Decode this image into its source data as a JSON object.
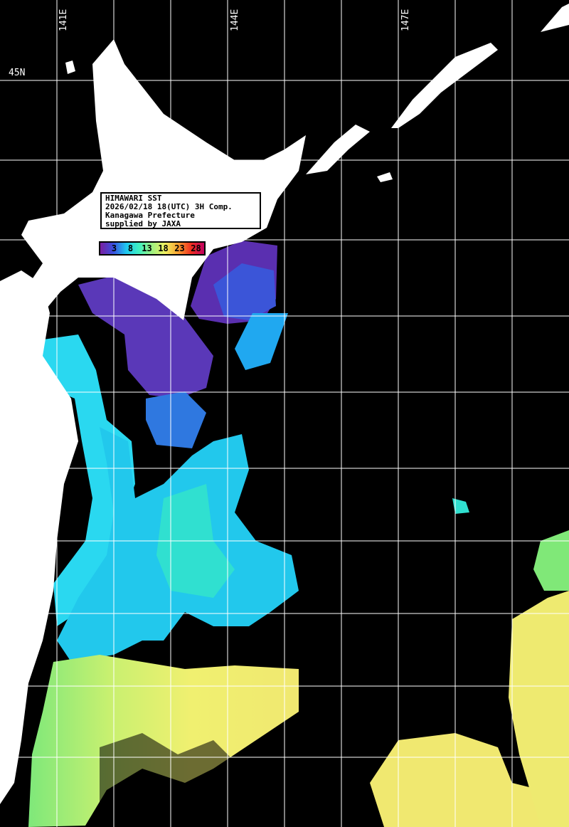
{
  "info_box": {
    "line1": "HIMAWARI SST",
    "line2": "2026/02/18 18(UTC) 3H Comp.",
    "line3": "Kanagawa Prefecture",
    "line4": "supplied by JAXA"
  },
  "colorbar": {
    "ticks": [
      "3",
      "8",
      "13",
      "18",
      "23",
      "28"
    ],
    "colors": [
      "#7a1fa0",
      "#3a4fe0",
      "#1ec8f0",
      "#40f0c0",
      "#a0f080",
      "#f0f060",
      "#f8a030",
      "#f03020",
      "#c00060"
    ]
  },
  "axes": {
    "lon_labels": [
      "141E",
      "144E",
      "147E"
    ],
    "lat_labels": [
      "45N"
    ]
  },
  "colors": {
    "land": "#ffffff",
    "no_data": "#000000",
    "grid": "#ffffff"
  }
}
